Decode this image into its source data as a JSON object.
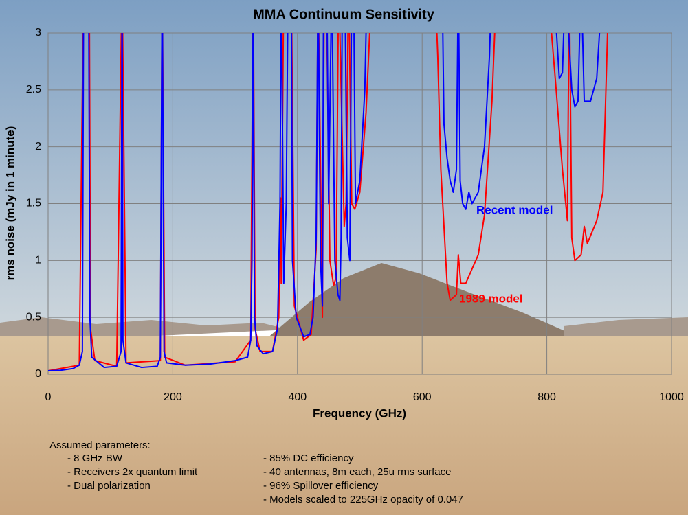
{
  "chart_data": {
    "type": "line",
    "title": "MMA Continuum Sensitivity",
    "xlabel": "Frequency (GHz)",
    "ylabel": "rms noise (mJy in 1 minute)",
    "xlim": [
      0,
      1000
    ],
    "ylim": [
      0,
      3
    ],
    "xticks": [
      0,
      200,
      400,
      600,
      800,
      1000
    ],
    "yticks": [
      0,
      0.5,
      1,
      1.5,
      2,
      2.5,
      3
    ],
    "grid": true,
    "series": [
      {
        "name": "1989 model",
        "color": "#ff0000",
        "x": [
          0,
          50,
          57,
          66,
          68,
          75,
          110,
          118.7,
          125,
          180,
          183,
          187,
          220,
          300,
          325,
          329,
          332,
          340,
          360,
          370,
          373,
          374,
          378,
          390,
          395,
          410,
          422,
          430,
          433,
          440,
          443,
          446,
          452,
          458,
          462,
          466,
          475,
          478,
          482,
          487,
          492,
          500,
          510,
          520,
          620,
          625,
          630,
          640,
          645,
          655,
          658,
          662,
          670,
          690,
          700,
          712,
          720,
          800,
          815,
          825,
          833,
          836,
          840,
          845,
          855,
          860,
          865,
          880,
          890,
          900
        ],
        "values": [
          0.03,
          0.08,
          3.5,
          3.5,
          0.4,
          0.12,
          0.07,
          3.5,
          0.1,
          0.12,
          3.5,
          0.15,
          0.08,
          0.11,
          0.3,
          3.5,
          0.4,
          0.2,
          0.2,
          0.5,
          1.55,
          0.8,
          3.5,
          3.5,
          0.6,
          0.3,
          0.35,
          1.1,
          3.5,
          0.5,
          3.5,
          3.5,
          1,
          0.78,
          0.85,
          3.5,
          1.3,
          1.5,
          3.5,
          1.5,
          1.45,
          1.6,
          2.3,
          3.5,
          3.5,
          2.8,
          1.8,
          0.8,
          0.65,
          0.7,
          1.05,
          0.8,
          0.8,
          1.05,
          1.4,
          2.4,
          3.5,
          3.5,
          2.5,
          1.8,
          1.35,
          3.5,
          1.2,
          1,
          1.05,
          1.3,
          1.15,
          1.35,
          1.6,
          3.5
        ]
      },
      {
        "name": "Recent model",
        "color": "#0000ff",
        "x": [
          0,
          20,
          40,
          50,
          55,
          57,
          65,
          67,
          70,
          90,
          110,
          117,
          118.7,
          120,
          125,
          150,
          175,
          180,
          183,
          186,
          190,
          220,
          260,
          300,
          320,
          325,
          327,
          328,
          329,
          331,
          335,
          345,
          360,
          368,
          372,
          374,
          378,
          382,
          385,
          390,
          392,
          398,
          410,
          420,
          425,
          430,
          433,
          437,
          440,
          442,
          447,
          450,
          455,
          460,
          465,
          468,
          470,
          472,
          476,
          480,
          484,
          487,
          490,
          493,
          500,
          508,
          512,
          632,
          635,
          640,
          645,
          650,
          655,
          658,
          661,
          665,
          670,
          675,
          680,
          690,
          700,
          708,
          712,
          810,
          820,
          825,
          830,
          840,
          845,
          850,
          855,
          860,
          870,
          880,
          890
        ],
        "values": [
          0.03,
          0.035,
          0.05,
          0.08,
          0.2,
          3.5,
          3.5,
          0.5,
          0.15,
          0.06,
          0.07,
          0.2,
          3.5,
          0.3,
          0.1,
          0.06,
          0.07,
          0.15,
          3.5,
          0.2,
          0.1,
          0.08,
          0.09,
          0.12,
          0.15,
          0.3,
          1,
          2,
          3.5,
          0.5,
          0.25,
          0.18,
          0.2,
          0.4,
          1.5,
          3.5,
          0.8,
          1.5,
          3.5,
          3.5,
          1,
          0.5,
          0.33,
          0.35,
          0.5,
          1.2,
          3.5,
          1,
          0.6,
          3.5,
          3.5,
          1.5,
          3.5,
          1,
          0.7,
          0.65,
          1.2,
          3.5,
          3.5,
          1.2,
          1,
          3.5,
          3.5,
          1.5,
          1.7,
          2.5,
          3.5,
          3.5,
          2.2,
          1.9,
          1.7,
          1.6,
          1.8,
          3.5,
          1.7,
          1.5,
          1.45,
          1.6,
          1.5,
          1.6,
          2,
          2.8,
          3.5,
          3.5,
          2.6,
          2.65,
          3.5,
          2.5,
          2.35,
          2.4,
          3.5,
          2.4,
          2.4,
          2.6,
          3.5
        ]
      }
    ],
    "annotations": [
      {
        "text": "Recent model",
        "color": "#0000ff"
      },
      {
        "text": "1989 model",
        "color": "#ff0000"
      }
    ],
    "parameters": {
      "heading": "Assumed parameters:",
      "left": [
        "-  8 GHz BW",
        "-  Receivers 2x quantum limit",
        "-  Dual polarization"
      ],
      "right": [
        "-  85% DC efficiency",
        "-  40 antennas, 8m each, 25u rms surface",
        "-  96% Spillover efficiency",
        "-  Models scaled to 225GHz opacity of 0.047"
      ]
    }
  }
}
